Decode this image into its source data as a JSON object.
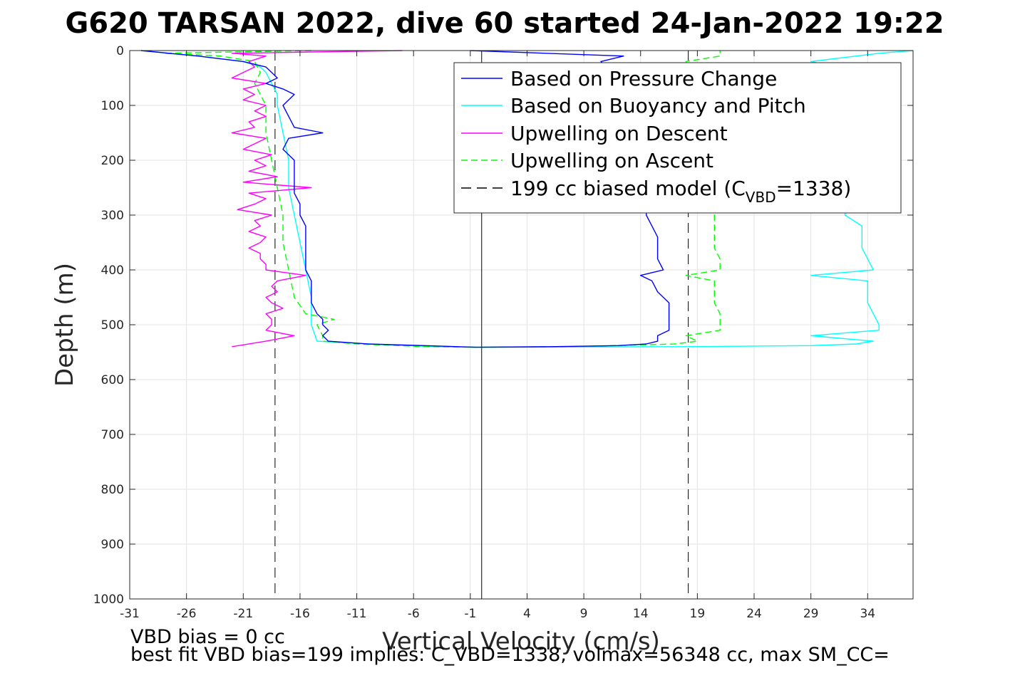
{
  "title": "G620 TARSAN 2022, dive 60 started 24-Jan-2022 19:22",
  "chart_data": {
    "type": "line",
    "title": "G620 TARSAN 2022, dive 60 started 24-Jan-2022 19:22",
    "xlabel": "Vertical Velocity (cm/s)",
    "ylabel": "Depth (m)",
    "xlim": [
      -31,
      38
    ],
    "ylim": [
      0,
      1000
    ],
    "y_reversed": true,
    "grid": true,
    "legend_position": "top-right",
    "x_ticks": [
      -31,
      -26,
      -21,
      -16,
      -11,
      -6,
      -1,
      4,
      9,
      14,
      19,
      24,
      29,
      34
    ],
    "y_ticks": [
      0,
      100,
      200,
      300,
      400,
      500,
      600,
      700,
      800,
      900,
      1000
    ],
    "series": [
      {
        "name": "Based on Pressure Change",
        "color": "#0000ff",
        "style": "solid",
        "descent": {
          "depth": [
            0,
            10,
            20,
            30,
            40,
            50,
            60,
            70,
            80,
            100,
            120,
            140,
            150,
            160,
            180,
            200,
            220,
            240,
            260,
            280,
            300,
            320,
            340,
            360,
            380,
            400,
            420,
            440,
            460,
            480,
            490,
            500,
            510,
            520,
            530,
            535,
            538,
            541
          ],
          "velocity": [
            -30,
            -25,
            -21,
            -19,
            -18.5,
            -18,
            -19,
            -17.5,
            -16.5,
            -17.5,
            -17,
            -16.5,
            -14,
            -17,
            -17.5,
            -16.5,
            -16.5,
            -16.5,
            -16.5,
            -16,
            -16,
            -15.5,
            -15.5,
            -15.5,
            -15.5,
            -15.5,
            -15,
            -15,
            -15,
            -14.5,
            -14,
            -14,
            -13.5,
            -14,
            -13.5,
            -10,
            -5,
            -0.5
          ]
        },
        "ascent": {
          "depth": [
            541,
            540,
            538,
            535,
            530,
            520,
            510,
            500,
            490,
            480,
            460,
            440,
            420,
            410,
            400,
            380,
            360,
            340,
            320,
            300,
            50,
            30,
            20,
            10,
            0
          ],
          "velocity": [
            -0.5,
            6,
            12,
            14.5,
            15.5,
            15.5,
            16.5,
            16.5,
            16.5,
            16.5,
            16.5,
            15.5,
            15,
            14,
            16,
            15.5,
            15.5,
            15.5,
            15,
            14.5,
            15,
            11,
            10.5,
            12.5,
            -1
          ]
        }
      },
      {
        "name": "Based on Buoyancy and Pitch",
        "color": "#00ffff",
        "style": "solid",
        "descent": {
          "depth": [
            0,
            10,
            20,
            30,
            40,
            60,
            80,
            100,
            150,
            200,
            250,
            300,
            350,
            400,
            450,
            500,
            530,
            535,
            540,
            541
          ],
          "velocity": [
            -30,
            -25,
            -21,
            -19.5,
            -19,
            -18.5,
            -18,
            -18,
            -17.5,
            -17,
            -17,
            -16.5,
            -16,
            -15.5,
            -15,
            -15,
            -14.5,
            -10,
            -4,
            0
          ]
        },
        "ascent": {
          "depth": [
            541,
            540,
            538,
            535,
            530,
            520,
            510,
            500,
            480,
            460,
            440,
            420,
            410,
            400,
            380,
            360,
            340,
            320,
            300,
            40,
            20,
            10,
            5,
            0
          ],
          "velocity": [
            0,
            18,
            29,
            33,
            34.5,
            29,
            35,
            35,
            34.5,
            34,
            34,
            34,
            29,
            34.5,
            34,
            33.5,
            33.5,
            33.5,
            32,
            33.5,
            29,
            33,
            35,
            38
          ]
        }
      },
      {
        "name": "Upwelling on Descent",
        "color": "#ff00ff",
        "style": "solid",
        "depth": [
          0,
          5,
          10,
          20,
          30,
          40,
          50,
          60,
          70,
          80,
          90,
          100,
          110,
          120,
          130,
          140,
          150,
          160,
          170,
          180,
          190,
          200,
          210,
          220,
          230,
          240,
          250,
          260,
          270,
          280,
          290,
          300,
          310,
          320,
          330,
          340,
          350,
          360,
          370,
          380,
          390,
          400,
          410,
          420,
          430,
          440,
          450,
          460,
          470,
          480,
          490,
          500,
          510,
          520,
          530,
          540
        ],
        "velocity": [
          -7,
          -22,
          -19,
          -20.5,
          -20,
          -21,
          -22,
          -19,
          -21,
          -20,
          -21,
          -19,
          -20,
          -19,
          -20.5,
          -20,
          -22,
          -19,
          -20,
          -21,
          -18.5,
          -20,
          -19,
          -20.5,
          -18,
          -21,
          -15,
          -20.5,
          -19,
          -20,
          -21.5,
          -18.5,
          -20,
          -19.5,
          -20.5,
          -19,
          -19.5,
          -20.5,
          -19.5,
          -19.5,
          -19,
          -19,
          -15.5,
          -18,
          -18.5,
          -18,
          -19,
          -18.5,
          -17.5,
          -19,
          -18.5,
          -18.5,
          -19,
          -16.5,
          -19,
          -22
        ]
      },
      {
        "name": "Upwelling on Ascent",
        "color": "#00ff00",
        "style": "dashed",
        "descent_part": {
          "depth": [
            0,
            5,
            10,
            20,
            40,
            60,
            80,
            100,
            150,
            200,
            250,
            300,
            350,
            400,
            450,
            480,
            490,
            500,
            520,
            530,
            535,
            540,
            541
          ],
          "velocity": [
            -15,
            -28,
            -23,
            -20,
            -19.5,
            -20,
            -19.5,
            -19,
            -19,
            -18.5,
            -18,
            -17.5,
            -17.5,
            -17,
            -16.5,
            -15.5,
            -13,
            -14.5,
            -14,
            -14,
            -11,
            -5,
            -1
          ]
        },
        "ascent_part": {
          "depth": [
            541,
            540,
            535,
            530,
            520,
            510,
            500,
            480,
            460,
            440,
            420,
            410,
            400,
            380,
            360,
            340,
            320,
            300,
            20,
            10,
            0
          ],
          "velocity": [
            -1,
            8,
            17,
            19,
            18,
            21,
            21,
            21,
            20.5,
            20.5,
            20.5,
            18,
            21,
            21,
            20.5,
            20.5,
            20.5,
            20.5,
            18,
            21,
            21
          ]
        }
      },
      {
        "name": "199 cc biased model (C_VBD=1338)",
        "legend_label": "199 cc biased model (C",
        "legend_sub": "VBD",
        "legend_tail": "=1338)",
        "color": "#000000",
        "style": "dashed",
        "lines_x": [
          -18.2,
          18.2
        ],
        "depth_range": [
          0,
          1000
        ]
      }
    ],
    "reference_line": {
      "x": 0,
      "color": "#000000",
      "style": "solid"
    },
    "x_tick_labels": [
      "-31",
      "-26",
      "-21",
      "-16",
      "-11",
      "-6",
      "-1",
      "4",
      "9",
      "14",
      "19",
      "24",
      "29",
      "34"
    ],
    "y_tick_labels": [
      "0",
      "100",
      "200",
      "300",
      "400",
      "500",
      "600",
      "700",
      "800",
      "900",
      "1000"
    ]
  },
  "footer": {
    "line1": "VBD bias = 0 cc",
    "line2": "best fit VBD bias=199 implies: C_VBD=1338, volmax=56348 cc, max SM_CC="
  }
}
